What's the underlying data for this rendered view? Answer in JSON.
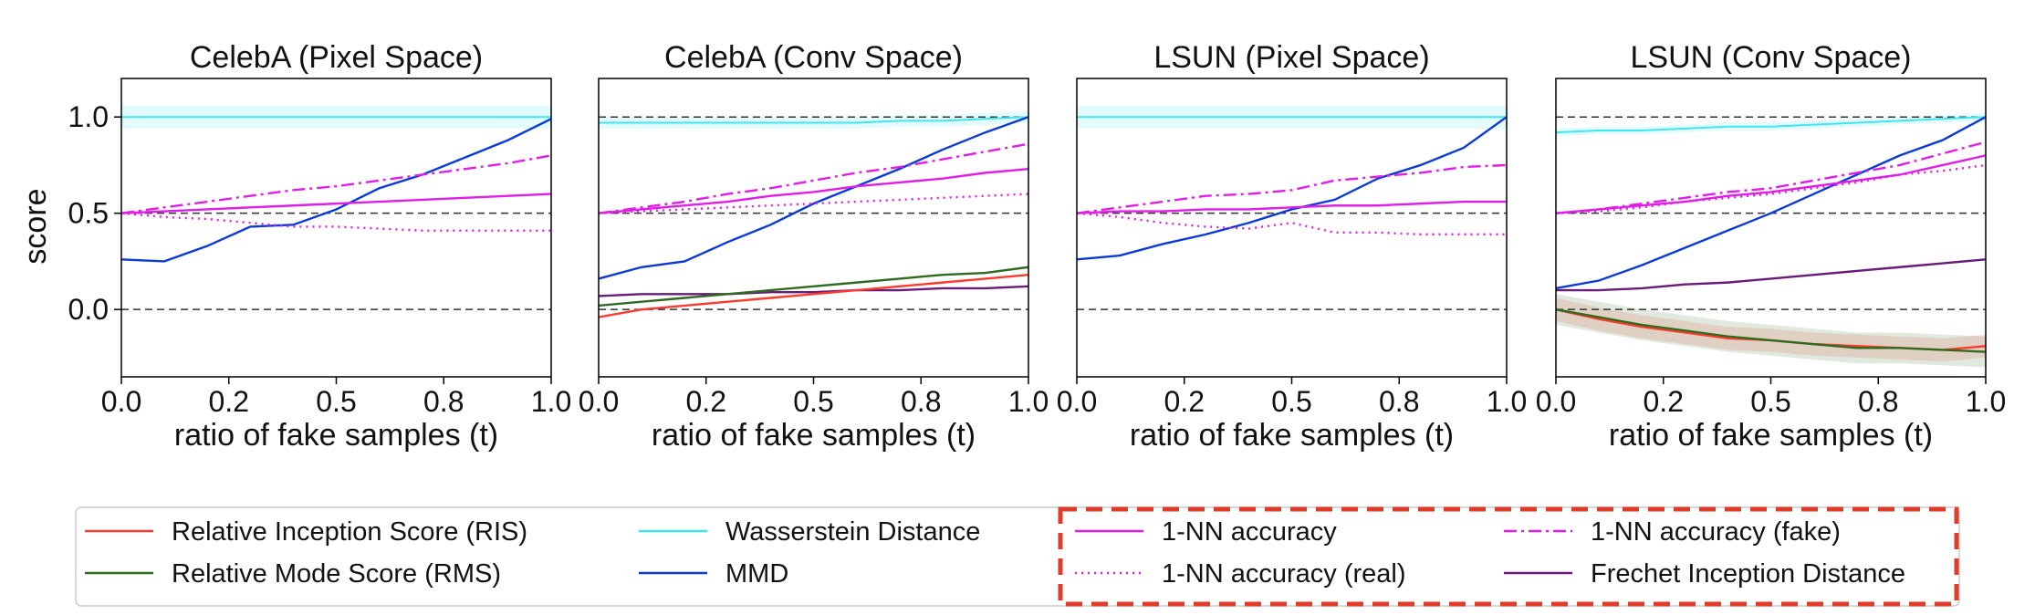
{
  "chart_data": [
    {
      "type": "line",
      "title": "CelebA (Pixel Space)",
      "xlabel": "ratio of fake samples (t)",
      "ylabel": "score",
      "xlim": [
        0,
        1
      ],
      "ylim": [
        -0.35,
        1.2
      ],
      "xticks": [
        0.0,
        0.25,
        0.5,
        0.75,
        1.0
      ],
      "xtick_labels": [
        "0.0",
        "0.2",
        "0.5",
        "0.8",
        "1.0"
      ],
      "yticks": [
        0.0,
        0.5,
        1.0
      ],
      "ytick_labels": [
        "0.0",
        "0.5",
        "1.0"
      ],
      "hlines": [
        0.0,
        0.5,
        1.0
      ],
      "x": [
        0.0,
        0.1,
        0.2,
        0.3,
        0.4,
        0.5,
        0.6,
        0.7,
        0.8,
        0.9,
        1.0
      ],
      "series": [
        {
          "key": "wass",
          "values": [
            1.0,
            1.0,
            1.0,
            1.0,
            1.0,
            1.0,
            1.0,
            1.0,
            1.0,
            1.0,
            1.0
          ],
          "band": 0.06
        },
        {
          "key": "mmd",
          "values": [
            0.26,
            0.25,
            0.33,
            0.43,
            0.44,
            0.52,
            0.63,
            0.7,
            0.79,
            0.88,
            0.99
          ]
        },
        {
          "key": "nn",
          "values": [
            0.5,
            0.51,
            0.52,
            0.53,
            0.54,
            0.55,
            0.56,
            0.57,
            0.58,
            0.59,
            0.6
          ]
        },
        {
          "key": "nn_fake",
          "values": [
            0.5,
            0.53,
            0.56,
            0.59,
            0.62,
            0.64,
            0.67,
            0.7,
            0.73,
            0.76,
            0.8
          ]
        },
        {
          "key": "nn_real",
          "values": [
            0.5,
            0.48,
            0.47,
            0.45,
            0.43,
            0.43,
            0.42,
            0.41,
            0.41,
            0.41,
            0.41
          ]
        }
      ]
    },
    {
      "type": "line",
      "title": "CelebA (Conv Space)",
      "xlabel": "ratio of fake samples (t)",
      "xlim": [
        0,
        1
      ],
      "ylim": [
        -0.35,
        1.2
      ],
      "xticks": [
        0.0,
        0.25,
        0.5,
        0.75,
        1.0
      ],
      "xtick_labels": [
        "0.0",
        "0.2",
        "0.5",
        "0.8",
        "1.0"
      ],
      "hlines": [
        0.0,
        0.5,
        1.0
      ],
      "x": [
        0.0,
        0.1,
        0.2,
        0.3,
        0.4,
        0.5,
        0.6,
        0.7,
        0.8,
        0.9,
        1.0
      ],
      "series": [
        {
          "key": "wass",
          "values": [
            0.97,
            0.97,
            0.97,
            0.97,
            0.97,
            0.97,
            0.97,
            0.98,
            0.98,
            0.99,
            1.0
          ],
          "band": 0.03
        },
        {
          "key": "mmd",
          "values": [
            0.16,
            0.22,
            0.25,
            0.35,
            0.44,
            0.55,
            0.64,
            0.73,
            0.83,
            0.92,
            1.0
          ]
        },
        {
          "key": "nn",
          "values": [
            0.5,
            0.52,
            0.54,
            0.56,
            0.59,
            0.61,
            0.64,
            0.66,
            0.68,
            0.71,
            0.73
          ]
        },
        {
          "key": "nn_fake",
          "values": [
            0.5,
            0.53,
            0.56,
            0.6,
            0.63,
            0.67,
            0.71,
            0.74,
            0.78,
            0.82,
            0.86
          ]
        },
        {
          "key": "nn_real",
          "values": [
            0.5,
            0.51,
            0.52,
            0.53,
            0.54,
            0.55,
            0.56,
            0.57,
            0.58,
            0.59,
            0.6
          ]
        },
        {
          "key": "fid",
          "values": [
            0.07,
            0.08,
            0.08,
            0.08,
            0.09,
            0.09,
            0.1,
            0.1,
            0.11,
            0.11,
            0.12
          ]
        },
        {
          "key": "rms",
          "values": [
            0.02,
            0.04,
            0.06,
            0.08,
            0.1,
            0.12,
            0.14,
            0.16,
            0.18,
            0.19,
            0.22
          ]
        },
        {
          "key": "ris",
          "values": [
            -0.04,
            0.0,
            0.02,
            0.04,
            0.06,
            0.08,
            0.1,
            0.12,
            0.14,
            0.16,
            0.18
          ]
        }
      ]
    },
    {
      "type": "line",
      "title": "LSUN (Pixel Space)",
      "xlabel": "ratio of fake samples (t)",
      "xlim": [
        0,
        1
      ],
      "ylim": [
        -0.35,
        1.2
      ],
      "xticks": [
        0.0,
        0.25,
        0.5,
        0.75,
        1.0
      ],
      "xtick_labels": [
        "0.0",
        "0.2",
        "0.5",
        "0.8",
        "1.0"
      ],
      "hlines": [
        0.0,
        0.5,
        1.0
      ],
      "x": [
        0.0,
        0.1,
        0.2,
        0.3,
        0.4,
        0.5,
        0.6,
        0.7,
        0.8,
        0.9,
        1.0
      ],
      "series": [
        {
          "key": "wass",
          "values": [
            1.0,
            1.0,
            1.0,
            1.0,
            1.0,
            1.0,
            1.0,
            1.0,
            1.0,
            1.0,
            1.0
          ],
          "band": 0.06
        },
        {
          "key": "mmd",
          "values": [
            0.26,
            0.28,
            0.34,
            0.39,
            0.45,
            0.52,
            0.57,
            0.68,
            0.75,
            0.84,
            1.0
          ]
        },
        {
          "key": "nn",
          "values": [
            0.5,
            0.51,
            0.51,
            0.52,
            0.52,
            0.53,
            0.54,
            0.54,
            0.55,
            0.56,
            0.56
          ]
        },
        {
          "key": "nn_fake",
          "values": [
            0.5,
            0.53,
            0.56,
            0.59,
            0.6,
            0.62,
            0.67,
            0.69,
            0.71,
            0.74,
            0.75
          ]
        },
        {
          "key": "nn_real",
          "values": [
            0.5,
            0.48,
            0.45,
            0.43,
            0.42,
            0.45,
            0.4,
            0.4,
            0.39,
            0.39,
            0.39
          ]
        }
      ]
    },
    {
      "type": "line",
      "title": "LSUN (Conv Space)",
      "xlabel": "ratio of fake samples (t)",
      "xlim": [
        0,
        1
      ],
      "ylim": [
        -0.35,
        1.2
      ],
      "xticks": [
        0.0,
        0.25,
        0.5,
        0.75,
        1.0
      ],
      "xtick_labels": [
        "0.0",
        "0.2",
        "0.5",
        "0.8",
        "1.0"
      ],
      "hlines": [
        0.0,
        0.5,
        1.0
      ],
      "x": [
        0.0,
        0.1,
        0.2,
        0.3,
        0.4,
        0.5,
        0.6,
        0.7,
        0.8,
        0.9,
        1.0
      ],
      "series": [
        {
          "key": "wass",
          "values": [
            0.92,
            0.93,
            0.93,
            0.94,
            0.95,
            0.95,
            0.96,
            0.97,
            0.98,
            0.99,
            1.0
          ],
          "band": 0.02
        },
        {
          "key": "mmd",
          "values": [
            0.11,
            0.15,
            0.23,
            0.32,
            0.41,
            0.5,
            0.6,
            0.7,
            0.8,
            0.88,
            1.0
          ]
        },
        {
          "key": "nn",
          "values": [
            0.5,
            0.52,
            0.54,
            0.56,
            0.59,
            0.61,
            0.64,
            0.67,
            0.7,
            0.75,
            0.8
          ]
        },
        {
          "key": "nn_fake",
          "values": [
            0.5,
            0.52,
            0.55,
            0.58,
            0.61,
            0.63,
            0.67,
            0.71,
            0.75,
            0.81,
            0.87
          ]
        },
        {
          "key": "nn_real",
          "values": [
            0.5,
            0.51,
            0.53,
            0.56,
            0.58,
            0.6,
            0.63,
            0.66,
            0.7,
            0.72,
            0.75
          ]
        },
        {
          "key": "fid",
          "values": [
            0.1,
            0.1,
            0.11,
            0.13,
            0.14,
            0.16,
            0.18,
            0.2,
            0.22,
            0.24,
            0.26
          ]
        },
        {
          "key": "ris",
          "values": [
            0.0,
            -0.05,
            -0.09,
            -0.12,
            -0.15,
            -0.16,
            -0.18,
            -0.19,
            -0.2,
            -0.21,
            -0.19
          ],
          "band": 0.06
        },
        {
          "key": "rms",
          "values": [
            0.0,
            -0.04,
            -0.08,
            -0.11,
            -0.14,
            -0.16,
            -0.18,
            -0.2,
            -0.2,
            -0.21,
            -0.22
          ],
          "band": 0.08
        }
      ]
    }
  ],
  "series_styles": {
    "ris": {
      "color": "#ff3b30",
      "dash": "solid"
    },
    "rms": {
      "color": "#2e6b1f",
      "dash": "solid"
    },
    "wass": {
      "color": "#40e6f0",
      "dash": "solid"
    },
    "mmd": {
      "color": "#0b3bd6",
      "dash": "solid"
    },
    "nn": {
      "color": "#e11de8",
      "dash": "solid"
    },
    "nn_real": {
      "color": "#e11de8",
      "dash": "dotted"
    },
    "nn_fake": {
      "color": "#e11de8",
      "dash": "dashdot"
    },
    "fid": {
      "color": "#6a1b7a",
      "dash": "solid"
    }
  },
  "legend": {
    "entries": [
      {
        "key": "ris",
        "label": "Relative Inception Score (RIS)"
      },
      {
        "key": "rms",
        "label": "Relative Mode Score (RMS)"
      },
      {
        "key": "wass",
        "label": "Wasserstein Distance"
      },
      {
        "key": "mmd",
        "label": "MMD"
      },
      {
        "key": "nn",
        "label": "1-NN accuracy"
      },
      {
        "key": "nn_real",
        "label": "1-NN accuracy (real)"
      },
      {
        "key": "nn_fake",
        "label": "1-NN accuracy (fake)"
      },
      {
        "key": "fid",
        "label": "Frechet Inception Distance"
      }
    ],
    "highlight_color": "#e23b2a"
  }
}
